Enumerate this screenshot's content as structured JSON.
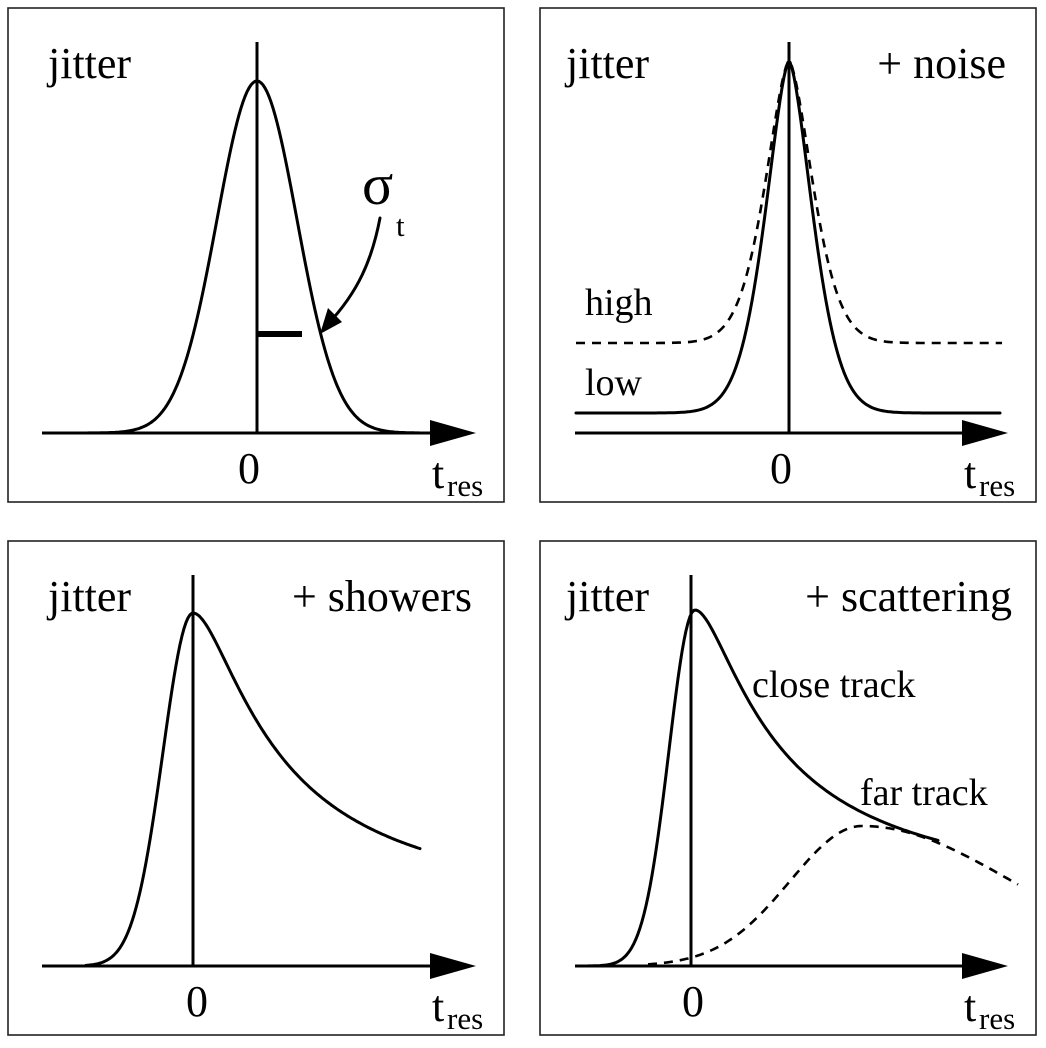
{
  "figure": {
    "panels": [
      {
        "id": "jitter",
        "left_label": "jitter",
        "right_label": "",
        "axis": {
          "zero": "0",
          "var": "t",
          "var_sub": "res"
        },
        "sigma": {
          "symbol": "σ",
          "sub": "t"
        },
        "curve_labels": []
      },
      {
        "id": "noise",
        "left_label": "jitter",
        "right_label": "+ noise",
        "axis": {
          "zero": "0",
          "var": "t",
          "var_sub": "res"
        },
        "curve_labels": [
          "high",
          "low"
        ]
      },
      {
        "id": "showers",
        "left_label": "jitter",
        "right_label": "+ showers",
        "axis": {
          "zero": "0",
          "var": "t",
          "var_sub": "res"
        },
        "curve_labels": []
      },
      {
        "id": "scattering",
        "left_label": "jitter",
        "right_label": "+ scattering",
        "axis": {
          "zero": "0",
          "var": "t",
          "var_sub": "res"
        },
        "curve_labels": [
          "close track",
          "far track"
        ]
      }
    ]
  }
}
